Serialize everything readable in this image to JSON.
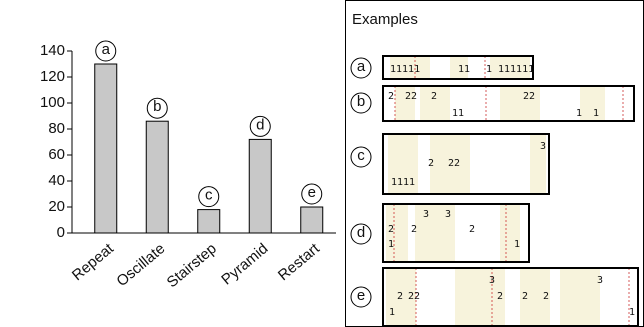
{
  "chart_data": {
    "type": "bar",
    "categories": [
      "Repeat",
      "Oscillate",
      "Stairstep",
      "Pyramid",
      "Restart"
    ],
    "values": [
      130,
      86,
      18,
      72,
      20
    ],
    "annotations": [
      "a",
      "b",
      "c",
      "d",
      "e"
    ],
    "color": "#c8c8c8",
    "ylim": [
      0,
      140
    ],
    "yticks": [
      0,
      20,
      40,
      60,
      80,
      100,
      120,
      140
    ],
    "grid": false
  },
  "examples_panel": {
    "title": "Examples",
    "examples": [
      {
        "label": "a",
        "tokens": [
          "11111",
          "11",
          "1",
          "111111"
        ]
      },
      {
        "label": "b",
        "tokens": [
          "2",
          "22",
          "2",
          "11",
          "22",
          "1",
          "1"
        ]
      },
      {
        "label": "c",
        "tokens": [
          "1111",
          "2",
          "22",
          "3"
        ]
      },
      {
        "label": "d",
        "tokens": [
          "2",
          "1",
          "2",
          "3",
          "3",
          "2",
          "1"
        ]
      },
      {
        "label": "e",
        "tokens": [
          "1",
          "2",
          "22",
          "3",
          "2",
          "2",
          "2",
          "3",
          "1"
        ]
      }
    ]
  }
}
